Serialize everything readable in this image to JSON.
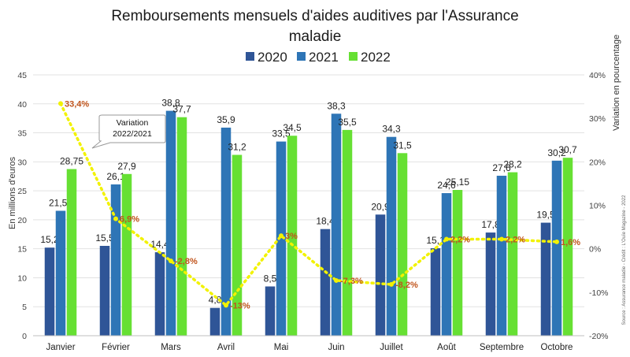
{
  "chart_data": {
    "type": "bar",
    "title_line1": "Remboursements mensuels d'aides auditives par l'Assurance",
    "title_line2": "maladie",
    "categories": [
      "Janvier",
      "Février",
      "Mars",
      "Avril",
      "Mai",
      "Juin",
      "Juillet",
      "Août",
      "Septembre",
      "Octobre"
    ],
    "series": [
      {
        "name": "2020",
        "color": "#2f5597",
        "values": [
          15.2,
          15.5,
          14.4,
          4.8,
          8.5,
          18.4,
          20.9,
          15.1,
          17.8,
          19.5
        ],
        "labels": [
          "15,2",
          "15,5",
          "14,4",
          "4,8",
          "8,5",
          "18,4",
          "20,9",
          "15,1",
          "17,8",
          "19,5"
        ]
      },
      {
        "name": "2021",
        "color": "#2e75b6",
        "values": [
          21.55,
          26.1,
          38.8,
          35.9,
          33.5,
          38.3,
          34.3,
          24.6,
          27.6,
          30.2
        ],
        "labels": [
          "21,55",
          "26,1",
          "38,8",
          "35,9",
          "33,5",
          "38,3",
          "34,3",
          "24,6",
          "27,6",
          "30,2"
        ]
      },
      {
        "name": "2022",
        "color": "#66e033",
        "values": [
          28.75,
          27.9,
          37.7,
          31.2,
          34.5,
          35.5,
          31.5,
          25.15,
          28.2,
          30.7
        ],
        "labels": [
          "28,75",
          "27,9",
          "37,7",
          "31,2",
          "34,5",
          "35,5",
          "31,5",
          "25,15",
          "28,2",
          "30,7"
        ]
      }
    ],
    "variation": {
      "color": "#f2f200",
      "values": [
        33.4,
        6.9,
        -2.8,
        -13,
        3,
        -7.3,
        -8.2,
        2.2,
        2.2,
        1.6
      ],
      "labels": [
        "33,4%",
        "6,9%",
        "-2,8%",
        "-13%",
        "3%",
        "-7,3%",
        "-8,2%",
        "2,2%",
        "2,2%",
        "1,6%"
      ]
    },
    "callout_line1": "Variation",
    "callout_line2": "2022/2021",
    "ylabel": "En millions d'euros",
    "ylabel_right": "Variation en pourcentage",
    "ylim": [
      0,
      45
    ],
    "yticks": [
      "0",
      "5",
      "10",
      "15",
      "20",
      "25",
      "30",
      "35",
      "40",
      "45"
    ],
    "ylim_right": [
      -20,
      40
    ],
    "yticks_right": [
      "-20%",
      "-10%",
      "0%",
      "10%",
      "20%",
      "30%",
      "40%"
    ],
    "grid": true,
    "legend_position": "top",
    "source": "Source : Assurance maladie - Crédit : L'Ouïe Magazine - 2022"
  }
}
